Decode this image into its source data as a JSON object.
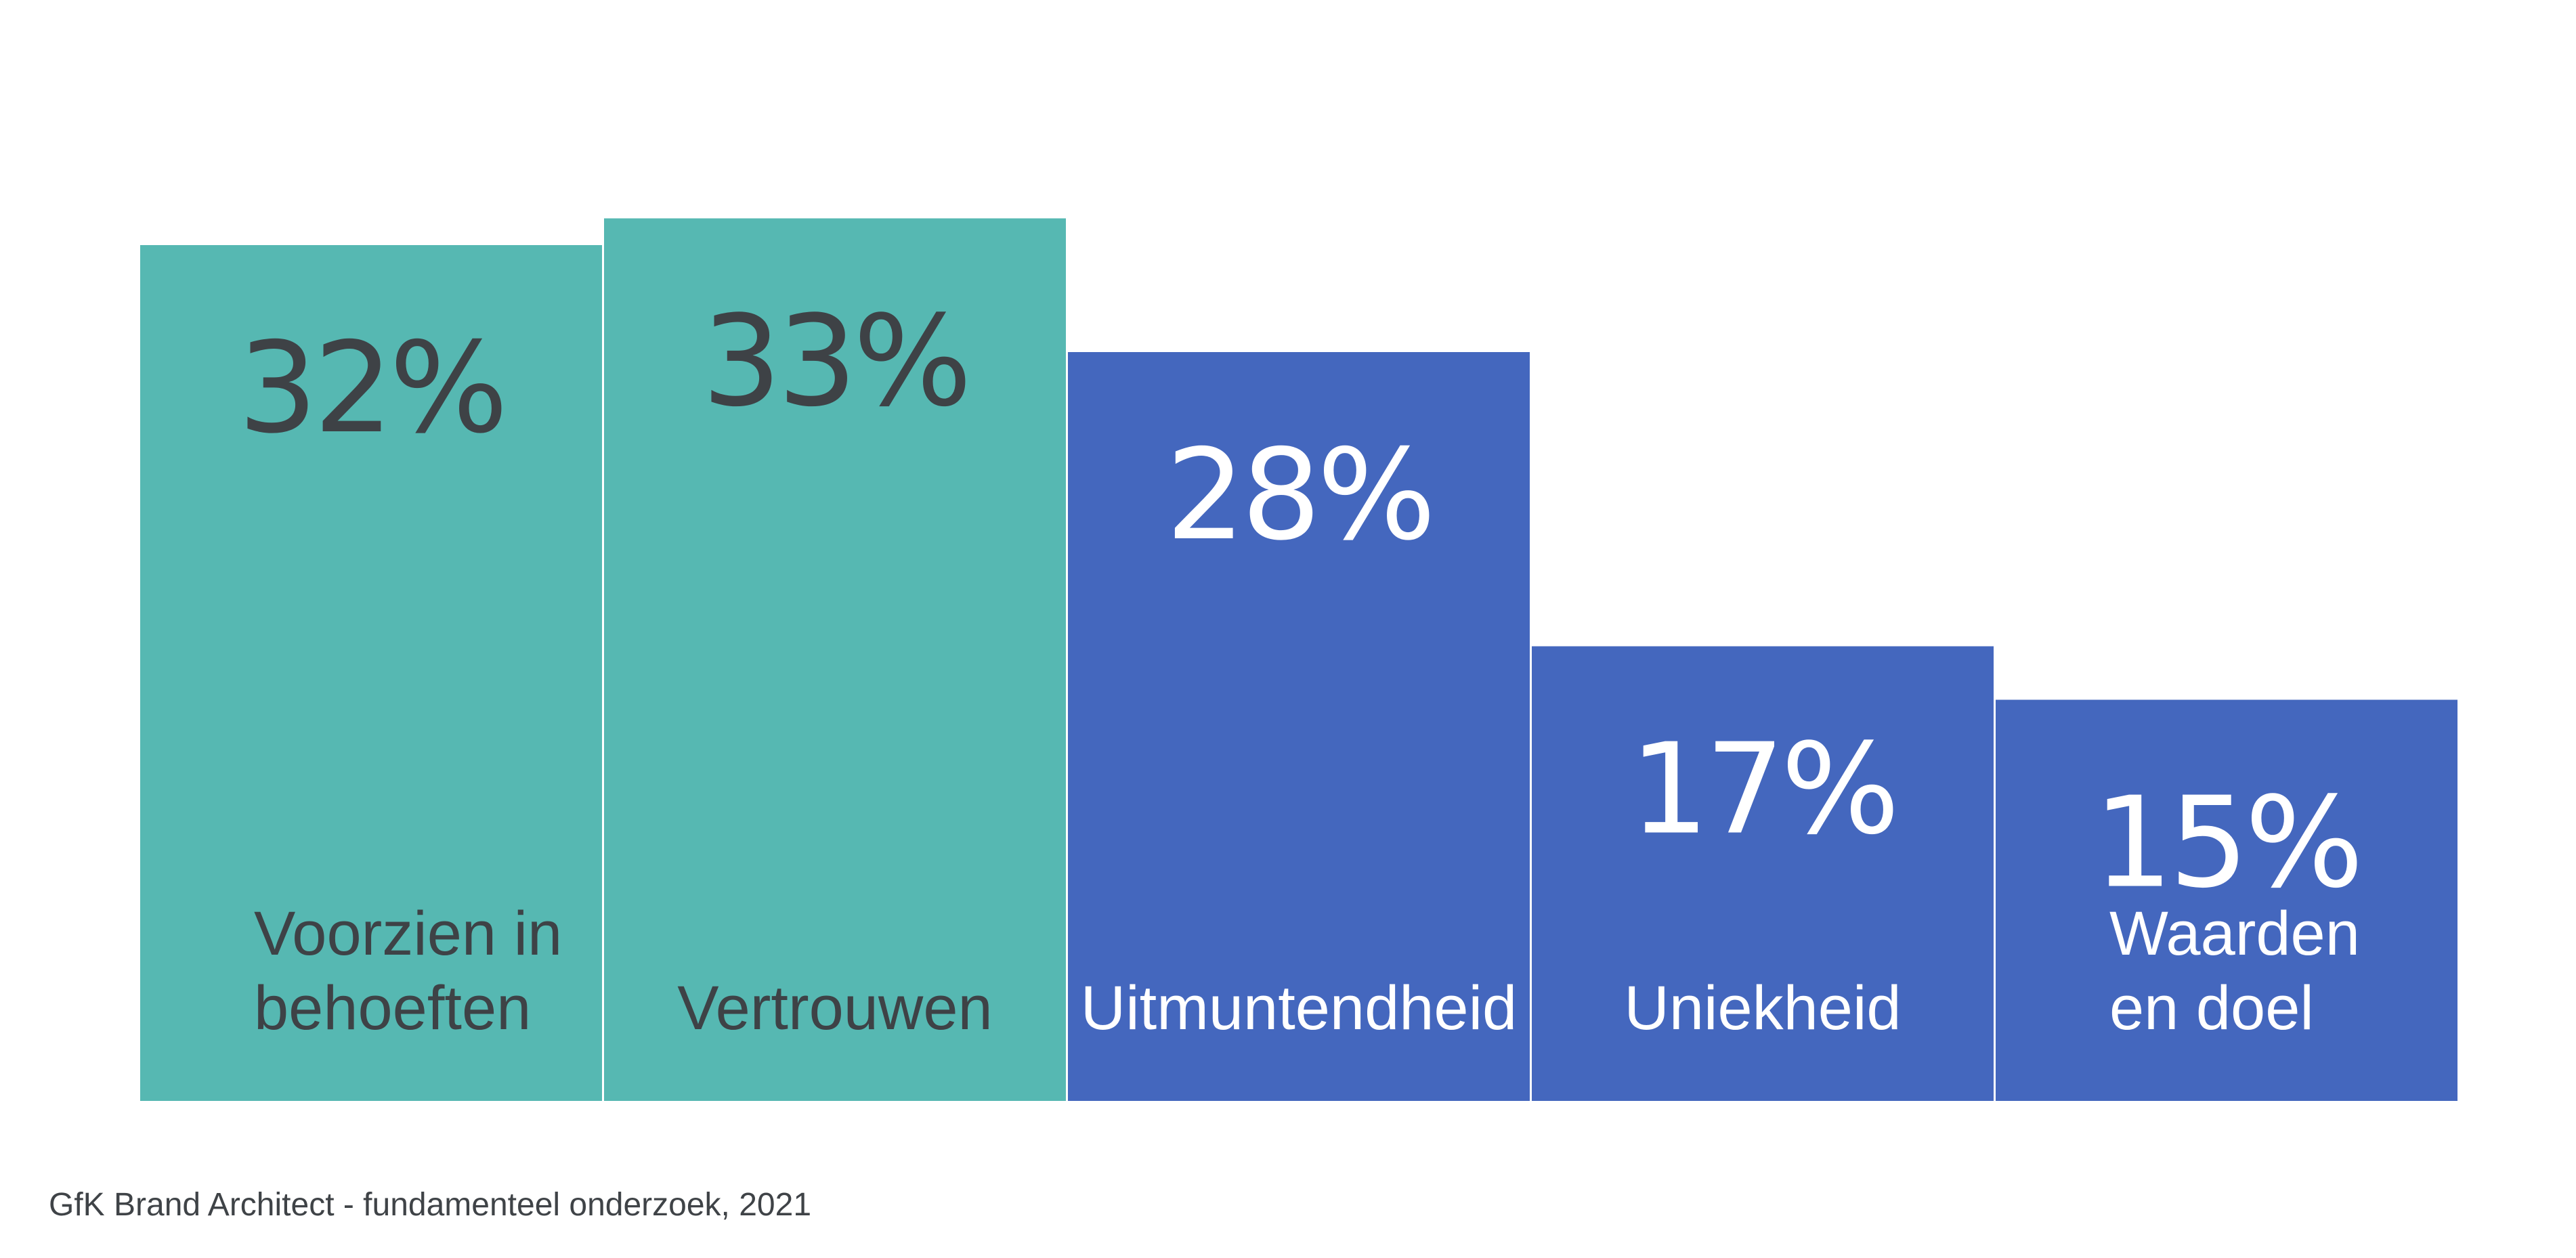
{
  "source": "GfK Brand Architect - fundamenteel onderzoek, 2021",
  "colors": {
    "teal": "#56b8b2",
    "blue": "#4467be",
    "dark_text": "#3e4246",
    "light_text": "#ffffff",
    "divider": "#ffffff"
  },
  "chart_data": {
    "type": "bar",
    "categories": [
      "Voorzien in behoeften",
      "Vertrouwen",
      "Uitmuntendheid",
      "Uniekheid",
      "Waarden en doel"
    ],
    "category_label_lines": [
      [
        "Voorzien in",
        "behoeften"
      ],
      [
        "Vertrouwen"
      ],
      [
        "Uitmuntendheid"
      ],
      [
        "Uniekheid"
      ],
      [
        "Waarden",
        "en doel"
      ]
    ],
    "values": [
      32,
      33,
      28,
      17,
      15
    ],
    "value_labels": [
      "32%",
      "33%",
      "28%",
      "17%",
      "15%"
    ],
    "bar_colors": [
      "#56b8b2",
      "#56b8b2",
      "#4467be",
      "#4467be",
      "#4467be"
    ],
    "text_colors": [
      "#3e4246",
      "#3e4246",
      "#ffffff",
      "#ffffff",
      "#ffffff"
    ],
    "title": "",
    "xlabel": "",
    "ylabel": "",
    "grid": false,
    "legend": "none"
  }
}
